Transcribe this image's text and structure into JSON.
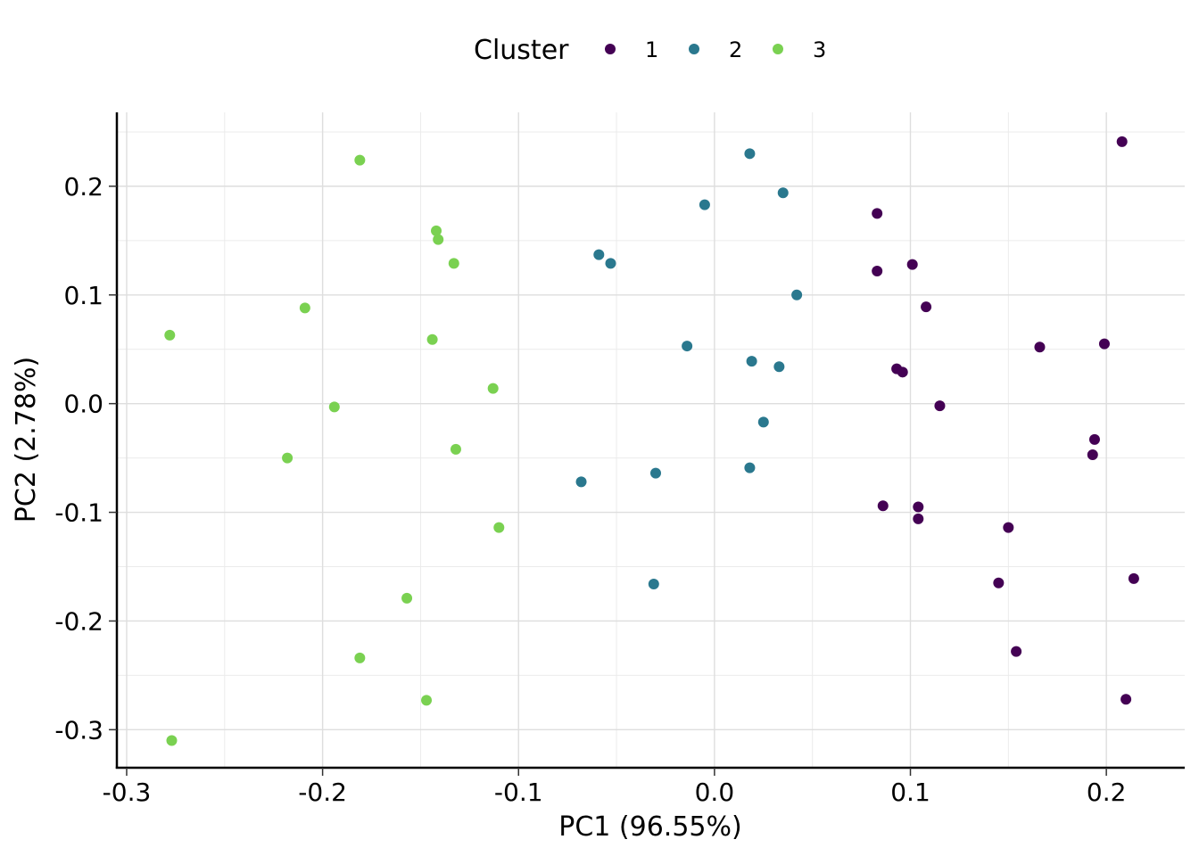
{
  "chart_data": {
    "type": "scatter",
    "xlabel": "PC1 (96.55%)",
    "ylabel": "PC2 (2.78%)",
    "xlim": [
      -0.305,
      0.24
    ],
    "ylim": [
      -0.335,
      0.268
    ],
    "xticks": [
      -0.3,
      -0.2,
      -0.1,
      0.0,
      0.1,
      0.2
    ],
    "xtick_labels": [
      "-0.3",
      "-0.2",
      "-0.1",
      "0.0",
      "0.1",
      "0.2"
    ],
    "yticks": [
      -0.3,
      -0.2,
      -0.1,
      0.0,
      0.1,
      0.2
    ],
    "ytick_labels": [
      "-0.3",
      "-0.2",
      "-0.1",
      "0.0",
      "0.1",
      "0.2"
    ],
    "grid": true,
    "legend": {
      "title": "Cluster",
      "position": "top"
    },
    "series": [
      {
        "name": "1",
        "color": "#440154",
        "points": [
          [
            0.208,
            0.241
          ],
          [
            0.083,
            0.175
          ],
          [
            0.083,
            0.122
          ],
          [
            0.101,
            0.128
          ],
          [
            0.108,
            0.089
          ],
          [
            0.166,
            0.052
          ],
          [
            0.199,
            0.055
          ],
          [
            0.093,
            0.032
          ],
          [
            0.096,
            0.029
          ],
          [
            0.115,
            -0.002
          ],
          [
            0.194,
            -0.033
          ],
          [
            0.193,
            -0.047
          ],
          [
            0.086,
            -0.094
          ],
          [
            0.104,
            -0.095
          ],
          [
            0.104,
            -0.106
          ],
          [
            0.15,
            -0.114
          ],
          [
            0.145,
            -0.165
          ],
          [
            0.214,
            -0.161
          ],
          [
            0.154,
            -0.228
          ],
          [
            0.21,
            -0.272
          ]
        ]
      },
      {
        "name": "2",
        "color": "#2A788E",
        "points": [
          [
            0.018,
            0.23
          ],
          [
            0.035,
            0.194
          ],
          [
            -0.005,
            0.183
          ],
          [
            -0.059,
            0.137
          ],
          [
            -0.053,
            0.129
          ],
          [
            0.042,
            0.1
          ],
          [
            -0.014,
            0.053
          ],
          [
            0.019,
            0.039
          ],
          [
            0.033,
            0.034
          ],
          [
            0.025,
            -0.017
          ],
          [
            0.018,
            -0.059
          ],
          [
            -0.068,
            -0.072
          ],
          [
            -0.03,
            -0.064
          ],
          [
            -0.031,
            -0.166
          ]
        ]
      },
      {
        "name": "3",
        "color": "#7AD151",
        "points": [
          [
            -0.181,
            0.224
          ],
          [
            -0.142,
            0.159
          ],
          [
            -0.141,
            0.151
          ],
          [
            -0.133,
            0.129
          ],
          [
            -0.209,
            0.088
          ],
          [
            -0.278,
            0.063
          ],
          [
            -0.144,
            0.059
          ],
          [
            -0.113,
            0.014
          ],
          [
            -0.194,
            -0.003
          ],
          [
            -0.218,
            -0.05
          ],
          [
            -0.132,
            -0.042
          ],
          [
            -0.11,
            -0.114
          ],
          [
            -0.157,
            -0.179
          ],
          [
            -0.181,
            -0.234
          ],
          [
            -0.147,
            -0.273
          ],
          [
            -0.277,
            -0.31
          ]
        ]
      }
    ]
  }
}
